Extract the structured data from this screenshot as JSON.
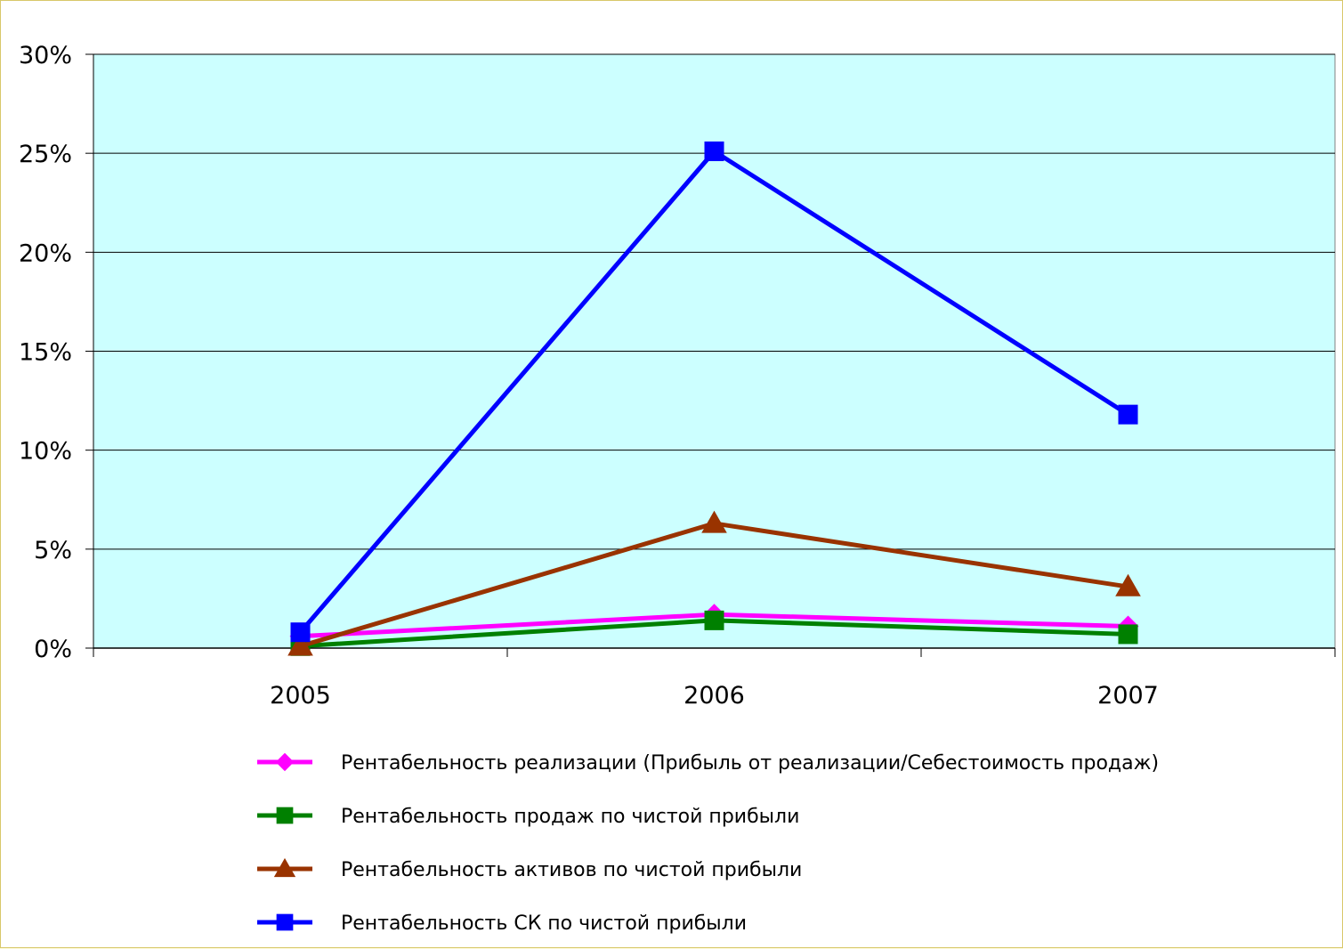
{
  "chart_data": {
    "type": "line",
    "title": "",
    "xlabel": "",
    "ylabel": "",
    "categories": [
      "2005",
      "2006",
      "2007"
    ],
    "ylim": [
      0,
      30
    ],
    "y_ticks": [
      0,
      5,
      10,
      15,
      20,
      25,
      30
    ],
    "y_tick_labels": [
      "0%",
      "5%",
      "10%",
      "15%",
      "20%",
      "25%",
      "30%"
    ],
    "grid": true,
    "legend_placement": "bottom",
    "plot_background": "#ccffff",
    "series": [
      {
        "name": "Рентабельность реализации  (Прибыль от реализации/Себестоимость продаж)",
        "values": [
          0.6,
          1.7,
          1.1
        ],
        "color": "#ff00ff",
        "marker": "diamond"
      },
      {
        "name": "Рентабельность продаж по чистой прибыли",
        "values": [
          0.1,
          1.4,
          0.7
        ],
        "color": "#008000",
        "marker": "square"
      },
      {
        "name": "Рентабельность активов по чистой прибыли",
        "values": [
          0.1,
          6.3,
          3.1
        ],
        "color": "#993300",
        "marker": "triangle"
      },
      {
        "name": "Рентабельность СК по чистой прибыли",
        "values": [
          0.8,
          25.1,
          11.8
        ],
        "color": "#0000ff",
        "marker": "square"
      }
    ]
  }
}
